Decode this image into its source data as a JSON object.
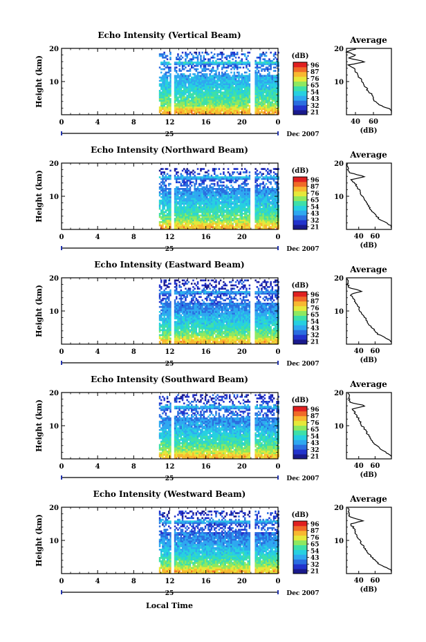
{
  "figure": {
    "xlabel": "Local Time",
    "date_label": "Dec 2007",
    "day_label": "25",
    "colorbar_unit": "(dB)",
    "colorbar_ticks": [
      "96",
      "87",
      "76",
      "65",
      "54",
      "43",
      "32",
      "21"
    ],
    "avg_title": "Average",
    "avg_xlabel": "(dB)",
    "ylabel": "Height (km)",
    "colormap": [
      "#1a1a8c",
      "#2233cc",
      "#2a6ee0",
      "#2ea8f0",
      "#26d0e0",
      "#3ee0a8",
      "#8ee860",
      "#e6e83a",
      "#f8b830",
      "#f06a28",
      "#e02020"
    ]
  },
  "chart_data": [
    {
      "type": "heatmap",
      "title": "Echo Intensity (Vertical Beam)",
      "x_ticks": [
        "0",
        "4",
        "8",
        "12",
        "16",
        "20",
        "0"
      ],
      "y_ticks": [
        "20",
        "10"
      ],
      "xlim": [
        0,
        24
      ],
      "ylim": [
        0,
        20
      ],
      "data_start_hour": 10.8,
      "gap_hours": [
        [
          12.1,
          12.4
        ],
        [
          20.9,
          21.3
        ]
      ],
      "echo_top_km": 19.5,
      "profile": {
        "heights_km": [
          1,
          2,
          3,
          4,
          5,
          6,
          8,
          10,
          12,
          14,
          15,
          16,
          17,
          18,
          19,
          20
        ],
        "values_db": [
          82,
          76,
          66,
          62,
          60,
          58,
          52,
          47,
          43,
          38,
          33,
          52,
          33,
          40,
          30,
          42
        ]
      },
      "avg_ticks": [
        "40",
        "60"
      ],
      "avg_xlim": [
        30,
        80
      ]
    },
    {
      "type": "heatmap",
      "title": "Echo Intensity (Northward Beam)",
      "x_ticks": [
        "0",
        "4",
        "8",
        "12",
        "16",
        "20",
        "0"
      ],
      "y_ticks": [
        "20",
        "10"
      ],
      "xlim": [
        0,
        24
      ],
      "ylim": [
        0,
        20
      ],
      "data_start_hour": 10.8,
      "gap_hours": [
        [
          12.1,
          12.4
        ],
        [
          20.9,
          21.3
        ]
      ],
      "echo_top_km": 18.5,
      "profile": {
        "heights_km": [
          1,
          2,
          3,
          4,
          5,
          6,
          8,
          10,
          12,
          14,
          15,
          16,
          17,
          18,
          19,
          20
        ],
        "values_db": [
          80,
          74,
          66,
          62,
          58,
          55,
          50,
          45,
          40,
          35,
          30,
          48,
          30,
          27,
          27,
          26
        ]
      },
      "avg_ticks": [
        "40",
        "60"
      ],
      "avg_xlim": [
        25,
        80
      ]
    },
    {
      "type": "heatmap",
      "title": "Echo Intensity (Eastward Beam)",
      "x_ticks": [
        "0",
        "4",
        "8",
        "12",
        "16",
        "20",
        "0"
      ],
      "y_ticks": [
        "20",
        "10"
      ],
      "xlim": [
        0,
        24
      ],
      "ylim": [
        0,
        20
      ],
      "data_start_hour": 10.8,
      "gap_hours": [
        [
          12.1,
          12.4
        ],
        [
          20.9,
          21.3
        ]
      ],
      "echo_top_km": 19.5,
      "profile": {
        "heights_km": [
          1,
          2,
          3,
          4,
          5,
          6,
          8,
          10,
          12,
          14,
          15,
          16,
          17,
          18,
          19,
          20
        ],
        "values_db": [
          80,
          72,
          64,
          60,
          56,
          53,
          48,
          42,
          38,
          33,
          30,
          44,
          29,
          26,
          28,
          26
        ]
      },
      "avg_ticks": [
        "40",
        "60"
      ],
      "avg_xlim": [
        25,
        80
      ]
    },
    {
      "type": "heatmap",
      "title": "Echo Intensity (Southward Beam)",
      "x_ticks": [
        "0",
        "4",
        "8",
        "12",
        "16",
        "20",
        "0"
      ],
      "y_ticks": [
        "20",
        "10"
      ],
      "xlim": [
        0,
        24
      ],
      "ylim": [
        0,
        20
      ],
      "data_start_hour": 10.8,
      "gap_hours": [
        [
          12.1,
          12.4
        ],
        [
          20.9,
          21.3
        ]
      ],
      "echo_top_km": 19.5,
      "profile": {
        "heights_km": [
          1,
          2,
          3,
          4,
          5,
          6,
          8,
          10,
          12,
          14,
          15,
          16,
          17,
          18,
          19,
          20
        ],
        "values_db": [
          80,
          73,
          66,
          62,
          58,
          55,
          50,
          44,
          40,
          35,
          31,
          48,
          30,
          28,
          29,
          27
        ]
      },
      "avg_ticks": [
        "40",
        "60"
      ],
      "avg_xlim": [
        25,
        80
      ]
    },
    {
      "type": "heatmap",
      "title": "Echo Intensity (Westward Beam)",
      "x_ticks": [
        "0",
        "4",
        "8",
        "12",
        "16",
        "20",
        "0"
      ],
      "y_ticks": [
        "20",
        "10"
      ],
      "xlim": [
        0,
        24
      ],
      "ylim": [
        0,
        20
      ],
      "data_start_hour": 10.8,
      "gap_hours": [
        [
          12.1,
          12.4
        ],
        [
          20.9,
          21.3
        ]
      ],
      "echo_top_km": 19.0,
      "profile": {
        "heights_km": [
          1,
          2,
          3,
          4,
          5,
          6,
          8,
          10,
          12,
          14,
          15,
          16,
          17,
          18,
          19,
          20
        ],
        "values_db": [
          80,
          72,
          64,
          60,
          56,
          52,
          46,
          41,
          37,
          33,
          30,
          46,
          29,
          27,
          28,
          26
        ]
      },
      "avg_ticks": [
        "40",
        "60"
      ],
      "avg_xlim": [
        25,
        80
      ]
    }
  ]
}
